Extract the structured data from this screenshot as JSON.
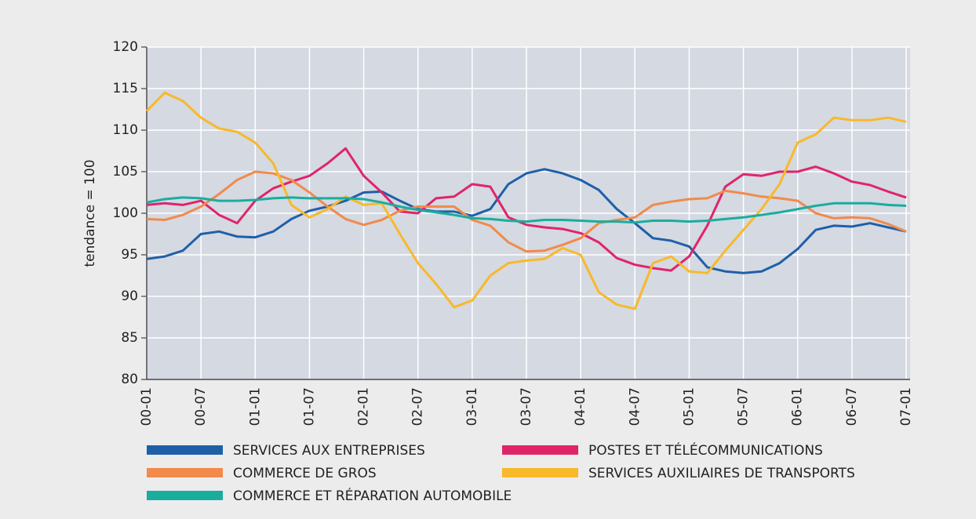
{
  "chart_data": {
    "type": "line",
    "ylabel": "tendance = 100",
    "categories": [
      "00-01",
      null,
      null,
      "00-07",
      null,
      null,
      "01-01",
      null,
      null,
      "01-07",
      null,
      null,
      "02-01",
      null,
      null,
      "02-07",
      null,
      null,
      "03-01",
      null,
      null,
      "03-07",
      null,
      null,
      "04-01",
      null,
      null,
      "04-07",
      null,
      null,
      "05-01",
      null,
      null,
      "05-07",
      null,
      null,
      "06-01",
      null,
      null,
      "06-07",
      null,
      null,
      "07-01"
    ],
    "ylim": [
      80,
      120
    ],
    "yticks": [
      80,
      85,
      90,
      95,
      100,
      105,
      110,
      115,
      120
    ],
    "grid": true,
    "legend": "bottom",
    "series": [
      {
        "name": "SERVICES AUX ENTREPRISES",
        "color": "#1f5fa8",
        "values": [
          94.5,
          94.8,
          95.5,
          97.5,
          97.8,
          97.2,
          97.1,
          97.8,
          99.3,
          100.3,
          100.8,
          101.5,
          102.5,
          102.6,
          101.5,
          100.5,
          100.2,
          100.2,
          99.7,
          100.5,
          103.5,
          104.8,
          105.3,
          104.8,
          104.0,
          102.8,
          100.5,
          98.8,
          97.0,
          96.7,
          96.0,
          93.5,
          93.0,
          92.8,
          93.0,
          94.0,
          95.7,
          98.0,
          98.5,
          98.4,
          98.8,
          98.3,
          97.8
        ]
      },
      {
        "name": "POSTES ET TÉLÉCOMMUNICATIONS",
        "color": "#e0246a",
        "values": [
          101.0,
          101.2,
          101.0,
          101.5,
          99.8,
          98.8,
          101.5,
          103.0,
          103.8,
          104.5,
          106.0,
          107.8,
          104.5,
          102.5,
          100.2,
          100.0,
          101.8,
          102.0,
          103.5,
          103.2,
          99.5,
          98.6,
          98.3,
          98.1,
          97.6,
          96.5,
          94.6,
          93.8,
          93.4,
          93.1,
          94.8,
          98.5,
          103.2,
          104.7,
          104.5,
          105.0,
          105.0,
          105.6,
          104.8,
          103.8,
          103.4,
          102.6,
          101.9
        ]
      },
      {
        "name": "COMMERCE DE GROS",
        "color": "#f28a4a",
        "values": [
          99.3,
          99.2,
          99.8,
          100.8,
          102.3,
          104.0,
          105.0,
          104.8,
          104.0,
          102.5,
          100.8,
          99.3,
          98.6,
          99.2,
          100.3,
          100.8,
          100.8,
          100.8,
          99.2,
          98.5,
          96.5,
          95.4,
          95.5,
          96.2,
          97.0,
          98.8,
          99.2,
          99.5,
          101.0,
          101.4,
          101.7,
          101.8,
          102.7,
          102.4,
          102.0,
          101.8,
          101.5,
          100.0,
          99.4,
          99.5,
          99.4,
          98.7,
          97.8
        ]
      },
      {
        "name": "SERVICES AUXILIAIRES DE TRANSPORTS",
        "color": "#f8b92a",
        "values": [
          112.3,
          114.5,
          113.5,
          111.5,
          110.2,
          109.8,
          108.5,
          106.0,
          101.0,
          99.5,
          100.5,
          102.0,
          101.0,
          101.2,
          97.5,
          94.0,
          91.5,
          88.7,
          89.5,
          92.5,
          94.0,
          94.3,
          94.5,
          95.8,
          95.0,
          90.5,
          89.0,
          88.5,
          94.0,
          94.8,
          93.0,
          92.8,
          95.5,
          98.0,
          100.5,
          103.5,
          108.5,
          109.5,
          111.5,
          111.2,
          111.2,
          111.5,
          111.0
        ]
      },
      {
        "name": "COMMERCE ET RÉPARATION AUTOMOBILE",
        "color": "#19ad9e",
        "values": [
          101.3,
          101.7,
          101.9,
          101.8,
          101.5,
          101.5,
          101.6,
          101.8,
          101.9,
          101.8,
          101.8,
          101.8,
          101.7,
          101.3,
          100.8,
          100.4,
          100.1,
          99.8,
          99.4,
          99.3,
          99.1,
          99.0,
          99.2,
          99.2,
          99.1,
          99.0,
          99.0,
          98.9,
          99.1,
          99.1,
          99.0,
          99.1,
          99.3,
          99.5,
          99.8,
          100.1,
          100.5,
          100.9,
          101.2,
          101.2,
          101.2,
          101.0,
          100.9
        ]
      }
    ]
  }
}
